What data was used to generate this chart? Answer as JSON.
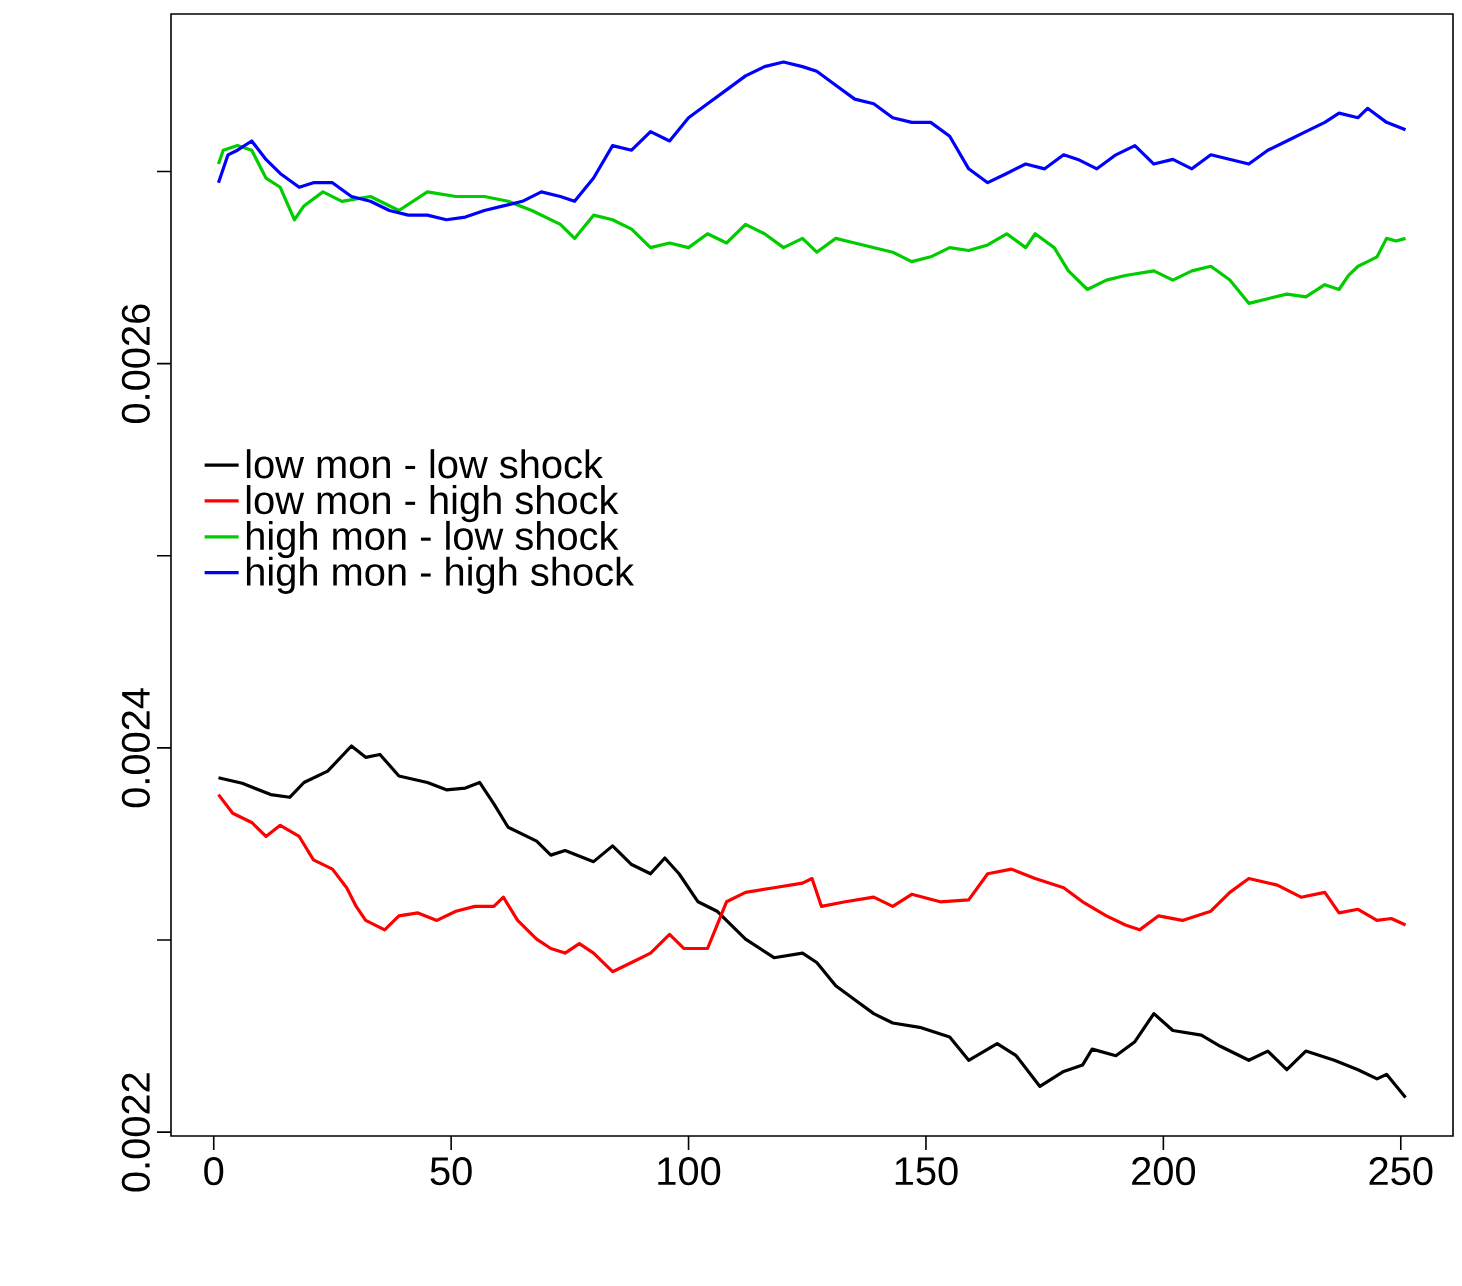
{
  "chart_data": {
    "type": "line",
    "xlim": [
      -9,
      261
    ],
    "ylim": [
      0.002198,
      0.002782
    ],
    "xticks": [
      0,
      50,
      100,
      150,
      200,
      250
    ],
    "yticks": [
      {
        "value": 0.0022,
        "label": "0.0022"
      },
      {
        "value": 0.0023,
        "label": null
      },
      {
        "value": 0.0024,
        "label": "0.0024"
      },
      {
        "value": 0.0025,
        "label": null
      },
      {
        "value": 0.0026,
        "label": "0.0026"
      },
      {
        "value": 0.0027,
        "label": null
      }
    ],
    "legend": "left",
    "grid": false,
    "marker": "none",
    "line_style": "solid",
    "series": [
      {
        "name": "low mon - low shock",
        "color": "#000000",
        "x": [
          1,
          6,
          12,
          16,
          19,
          24,
          29,
          32,
          35,
          39,
          45,
          49,
          53,
          56,
          59,
          62,
          68,
          71,
          74,
          80,
          84,
          88,
          92,
          95,
          98,
          102,
          106,
          112,
          118,
          124,
          127,
          131,
          135,
          139,
          143,
          149,
          155,
          159,
          165,
          169,
          174,
          179,
          183,
          185,
          190,
          194,
          198,
          202,
          208,
          212,
          218,
          222,
          226,
          230,
          236,
          241,
          245,
          247,
          251
        ],
        "values": [
          0.0023845,
          0.0023816,
          0.0023757,
          0.0023743,
          0.002382,
          0.0023879,
          0.002401,
          0.0023951,
          0.0023966,
          0.0023854,
          0.002382,
          0.0023782,
          0.0023791,
          0.002382,
          0.0023709,
          0.0023587,
          0.0023515,
          0.0023442,
          0.0023466,
          0.0023408,
          0.002349,
          0.0023393,
          0.0023345,
          0.0023427,
          0.0023345,
          0.0023199,
          0.002315,
          0.0023005,
          0.0022908,
          0.0022932,
          0.0022883,
          0.0022762,
          0.0022689,
          0.0022617,
          0.0022568,
          0.0022544,
          0.0022495,
          0.0022374,
          0.0022461,
          0.0022398,
          0.0022238,
          0.0022316,
          0.002235,
          0.0022432,
          0.0022398,
          0.0022471,
          0.0022617,
          0.0022529,
          0.0022505,
          0.0022447,
          0.0022374,
          0.0022422,
          0.0022325,
          0.0022422,
          0.0022374,
          0.0022325,
          0.0022277,
          0.0022301,
          0.002218
        ]
      },
      {
        "name": "low mon - high shock",
        "color": "#ff0000",
        "x": [
          1,
          4,
          8,
          11,
          14,
          18,
          21,
          25,
          28,
          30,
          32,
          36,
          39,
          43,
          47,
          51,
          55,
          59,
          61,
          64,
          68,
          71,
          74,
          77,
          80,
          84,
          88,
          92,
          96,
          99,
          104,
          108,
          112,
          118,
          124,
          126,
          128,
          133,
          139,
          143,
          147,
          153,
          159,
          163,
          168,
          173,
          179,
          183,
          188,
          192,
          195,
          199,
          204,
          210,
          214,
          218,
          224,
          229,
          234,
          237,
          241,
          245,
          248,
          251
        ],
        "values": [
          0.0023757,
          0.002366,
          0.0023612,
          0.0023539,
          0.0023597,
          0.0023539,
          0.0023417,
          0.0023369,
          0.0023272,
          0.0023175,
          0.0023102,
          0.0023053,
          0.0023126,
          0.0023141,
          0.0023102,
          0.002315,
          0.0023175,
          0.0023175,
          0.0023223,
          0.0023102,
          0.0023005,
          0.0022956,
          0.0022932,
          0.0022981,
          0.0022932,
          0.0022835,
          0.0022883,
          0.0022932,
          0.0023029,
          0.0022956,
          0.0022956,
          0.0023199,
          0.0023248,
          0.0023272,
          0.0023296,
          0.002332,
          0.0023175,
          0.0023199,
          0.0023223,
          0.0023175,
          0.0023238,
          0.0023199,
          0.0023209,
          0.0023345,
          0.0023369,
          0.002332,
          0.0023272,
          0.0023199,
          0.0023126,
          0.0023078,
          0.0023053,
          0.0023126,
          0.0023102,
          0.002315,
          0.0023248,
          0.002332,
          0.0023286,
          0.0023223,
          0.0023248,
          0.0023141,
          0.002316,
          0.0023102,
          0.0023112,
          0.0023078
        ]
      },
      {
        "name": "high mon - low shock",
        "color": "#00cc00",
        "x": [
          1,
          2,
          5,
          8,
          11,
          14,
          17,
          19,
          23,
          27,
          33,
          39,
          45,
          51,
          57,
          62,
          67,
          73,
          76,
          80,
          84,
          88,
          92,
          96,
          100,
          104,
          108,
          112,
          116,
          120,
          124,
          127,
          131,
          135,
          139,
          143,
          147,
          151,
          155,
          159,
          163,
          167,
          171,
          173,
          177,
          180,
          184,
          188,
          192,
          198,
          202,
          206,
          210,
          214,
          218,
          222,
          226,
          230,
          234,
          237,
          239,
          241,
          243,
          245,
          247,
          249,
          251
        ],
        "values": [
          0.0027039,
          0.0027111,
          0.0027135,
          0.0027111,
          0.0026966,
          0.0026918,
          0.0026749,
          0.0026821,
          0.0026894,
          0.0026845,
          0.002687,
          0.0026797,
          0.0026894,
          0.002687,
          0.002687,
          0.0026845,
          0.0026797,
          0.0026725,
          0.0026652,
          0.0026773,
          0.0026749,
          0.00267,
          0.0026604,
          0.0026628,
          0.0026604,
          0.0026676,
          0.0026628,
          0.0026725,
          0.0026676,
          0.0026604,
          0.0026652,
          0.002658,
          0.0026652,
          0.0026628,
          0.0026604,
          0.002658,
          0.0026531,
          0.0026556,
          0.0026604,
          0.0026589,
          0.0026618,
          0.0026676,
          0.0026604,
          0.0026676,
          0.0026604,
          0.0026483,
          0.0026386,
          0.0026435,
          0.0026459,
          0.0026483,
          0.0026435,
          0.0026483,
          0.0026507,
          0.0026435,
          0.0026314,
          0.0026338,
          0.0026362,
          0.0026348,
          0.0026411,
          0.0026386,
          0.0026459,
          0.0026507,
          0.0026531,
          0.0026556,
          0.0026652,
          0.0026638,
          0.0026652
        ]
      },
      {
        "name": "high mon - high shock",
        "color": "#0000ff",
        "x": [
          1,
          3,
          5,
          8,
          11,
          14,
          18,
          21,
          25,
          29,
          33,
          37,
          41,
          45,
          49,
          53,
          57,
          61,
          65,
          69,
          73,
          76,
          80,
          84,
          88,
          92,
          96,
          100,
          104,
          108,
          112,
          116,
          120,
          124,
          127,
          131,
          135,
          139,
          143,
          147,
          151,
          155,
          159,
          163,
          167,
          171,
          175,
          179,
          182,
          186,
          190,
          194,
          198,
          202,
          206,
          210,
          214,
          218,
          222,
          226,
          230,
          234,
          237,
          241,
          243,
          247,
          251
        ],
        "values": [
          0.0026942,
          0.0027087,
          0.0027111,
          0.0027159,
          0.0027063,
          0.002699,
          0.0026918,
          0.0026942,
          0.0026942,
          0.002687,
          0.0026845,
          0.0026797,
          0.0026773,
          0.0026773,
          0.0026749,
          0.0026763,
          0.0026797,
          0.0026821,
          0.0026845,
          0.0026894,
          0.002687,
          0.0026845,
          0.0026966,
          0.0027135,
          0.0027111,
          0.0027208,
          0.0027159,
          0.002728,
          0.0027353,
          0.0027425,
          0.0027498,
          0.0027546,
          0.002757,
          0.0027546,
          0.0027522,
          0.0027449,
          0.0027377,
          0.0027353,
          0.002728,
          0.0027256,
          0.0027256,
          0.0027184,
          0.0027014,
          0.0026942,
          0.002699,
          0.0027039,
          0.0027014,
          0.0027087,
          0.0027063,
          0.0027014,
          0.0027087,
          0.0027135,
          0.0027039,
          0.0027063,
          0.0027014,
          0.0027087,
          0.0027063,
          0.0027039,
          0.0027111,
          0.0027159,
          0.0027208,
          0.0027256,
          0.0027304,
          0.002728,
          0.0027329,
          0.0027256,
          0.0027217
        ]
      }
    ]
  }
}
